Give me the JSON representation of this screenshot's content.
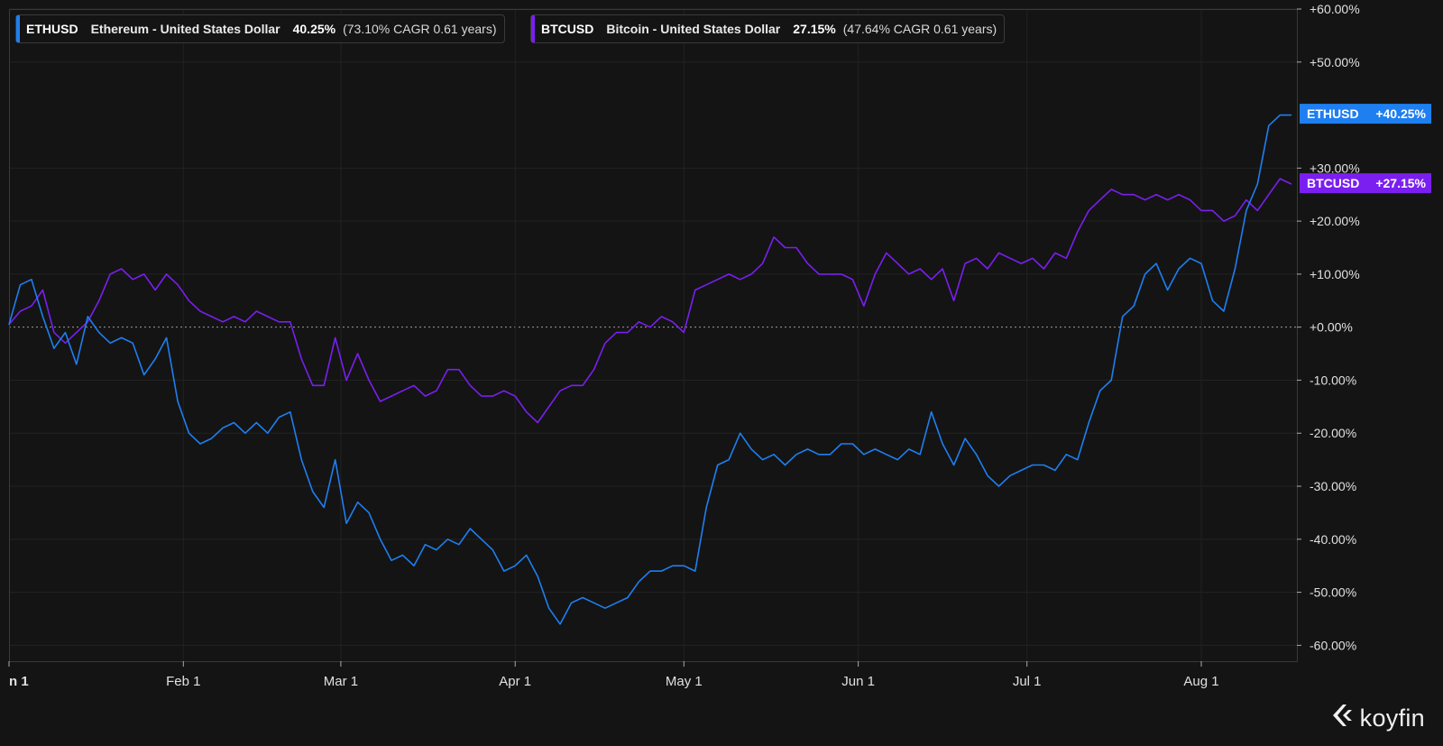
{
  "legend": [
    {
      "symbol": "ETHUSD",
      "name": "Ethereum - United States Dollar",
      "return": "40.25%",
      "cagr": "(73.10% CAGR 0.61 years)",
      "color": "#1e7ff0"
    },
    {
      "symbol": "BTCUSD",
      "name": "Bitcoin - United States Dollar",
      "return": "27.15%",
      "cagr": "(47.64% CAGR 0.61 years)",
      "color": "#7a1ff0"
    }
  ],
  "brand": {
    "name": "koyfin",
    "icon": "koyfin-logo-icon"
  },
  "chart_data": {
    "type": "line",
    "ylabel": "",
    "xlabel": "",
    "ylim": [
      -63,
      60
    ],
    "y_ticks": [
      60,
      50,
      30,
      20,
      10,
      0,
      -10,
      -20,
      -30,
      -40,
      -50,
      -60
    ],
    "y_tick_labels": [
      "+60.00%",
      "+50.00%",
      "+30.00%",
      "+20.00%",
      "+10.00%",
      "+0.00%",
      "-10.00%",
      "-20.00%",
      "-30.00%",
      "-40.00%",
      "-50.00%",
      "-60.00%"
    ],
    "x_ticks": [
      0,
      31,
      59,
      90,
      120,
      151,
      181,
      212
    ],
    "x_tick_labels": [
      "n 1",
      "Feb 1",
      "Mar 1",
      "Apr 1",
      "May 1",
      "Jun 1",
      "Jul 1",
      "Aug 1"
    ],
    "xlim": [
      0,
      229
    ],
    "grid": true,
    "zero_line": true,
    "end_labels": [
      {
        "series": "ETHUSD",
        "text": "ETHUSD",
        "value_text": "+40.25%",
        "value": 40.25
      },
      {
        "series": "BTCUSD",
        "text": "BTCUSD",
        "value_text": "+27.15%",
        "value": 27.15
      }
    ],
    "series": [
      {
        "name": "ETHUSD",
        "color": "#1e7ff0",
        "x": [
          0,
          2,
          4,
          6,
          8,
          10,
          12,
          14,
          16,
          18,
          20,
          22,
          24,
          26,
          28,
          30,
          32,
          34,
          36,
          38,
          40,
          42,
          44,
          46,
          48,
          50,
          52,
          54,
          56,
          58,
          60,
          62,
          64,
          66,
          68,
          70,
          72,
          74,
          76,
          78,
          80,
          82,
          84,
          86,
          88,
          90,
          92,
          94,
          96,
          98,
          100,
          102,
          104,
          106,
          108,
          110,
          112,
          114,
          116,
          118,
          120,
          122,
          124,
          126,
          128,
          130,
          132,
          134,
          136,
          138,
          140,
          142,
          144,
          146,
          148,
          150,
          152,
          154,
          156,
          158,
          160,
          162,
          164,
          166,
          168,
          170,
          172,
          174,
          176,
          178,
          180,
          182,
          184,
          186,
          188,
          190,
          192,
          194,
          196,
          198,
          200,
          202,
          204,
          206,
          208,
          210,
          212,
          214,
          216,
          218,
          220,
          222,
          224,
          226,
          228
        ],
        "values": [
          0.5,
          8,
          9,
          2,
          -4,
          -1,
          -7,
          2,
          -1,
          -3,
          -2,
          -3,
          -9,
          -6,
          -2,
          -14,
          -20,
          -22,
          -21,
          -19,
          -18,
          -20,
          -18,
          -20,
          -17,
          -16,
          -25,
          -31,
          -34,
          -25,
          -37,
          -33,
          -35,
          -40,
          -44,
          -43,
          -45,
          -41,
          -42,
          -40,
          -41,
          -38,
          -40,
          -42,
          -46,
          -45,
          -43,
          -47,
          -53,
          -56,
          -52,
          -51,
          -52,
          -53,
          -52,
          -51,
          -48,
          -46,
          -46,
          -45,
          -45,
          -46,
          -34,
          -26,
          -25,
          -20,
          -23,
          -25,
          -24,
          -26,
          -24,
          -23,
          -24,
          -24,
          -22,
          -22,
          -24,
          -23,
          -24,
          -25,
          -23,
          -24,
          -16,
          -22,
          -26,
          -21,
          -24,
          -28,
          -30,
          -28,
          -27,
          -26,
          -26,
          -27,
          -24,
          -25,
          -18,
          -12,
          -10,
          2,
          4,
          10,
          12,
          7,
          11,
          13,
          12,
          5,
          3,
          11,
          22,
          27,
          38,
          40,
          40
        ]
      },
      {
        "name": "BTCUSD",
        "color": "#7a1ff0",
        "x": [
          0,
          2,
          4,
          6,
          8,
          10,
          12,
          14,
          16,
          18,
          20,
          22,
          24,
          26,
          28,
          30,
          32,
          34,
          36,
          38,
          40,
          42,
          44,
          46,
          48,
          50,
          52,
          54,
          56,
          58,
          60,
          62,
          64,
          66,
          68,
          70,
          72,
          74,
          76,
          78,
          80,
          82,
          84,
          86,
          88,
          90,
          92,
          94,
          96,
          98,
          100,
          102,
          104,
          106,
          108,
          110,
          112,
          114,
          116,
          118,
          120,
          122,
          124,
          126,
          128,
          130,
          132,
          134,
          136,
          138,
          140,
          142,
          144,
          146,
          148,
          150,
          152,
          154,
          156,
          158,
          160,
          162,
          164,
          166,
          168,
          170,
          172,
          174,
          176,
          178,
          180,
          182,
          184,
          186,
          188,
          190,
          192,
          194,
          196,
          198,
          200,
          202,
          204,
          206,
          208,
          210,
          212,
          214,
          216,
          218,
          220,
          222,
          224,
          226,
          228
        ],
        "values": [
          0.5,
          3,
          4,
          7,
          -1,
          -3,
          -1,
          1,
          5,
          10,
          11,
          9,
          10,
          7,
          10,
          8,
          5,
          3,
          2,
          1,
          2,
          1,
          3,
          2,
          1,
          1,
          -6,
          -11,
          -11,
          -2,
          -10,
          -5,
          -10,
          -14,
          -13,
          -12,
          -11,
          -13,
          -12,
          -8,
          -8,
          -11,
          -13,
          -13,
          -12,
          -13,
          -16,
          -18,
          -15,
          -12,
          -11,
          -11,
          -8,
          -3,
          -1,
          -1,
          1,
          0,
          2,
          1,
          -1,
          7,
          8,
          9,
          10,
          9,
          10,
          12,
          17,
          15,
          15,
          12,
          10,
          10,
          10,
          9,
          4,
          10,
          14,
          12,
          10,
          11,
          9,
          11,
          5,
          12,
          13,
          11,
          14,
          13,
          12,
          13,
          11,
          14,
          13,
          18,
          22,
          24,
          26,
          25,
          25,
          24,
          25,
          24,
          25,
          24,
          22,
          22,
          20,
          21,
          24,
          22,
          25,
          28,
          27
        ]
      }
    ]
  }
}
